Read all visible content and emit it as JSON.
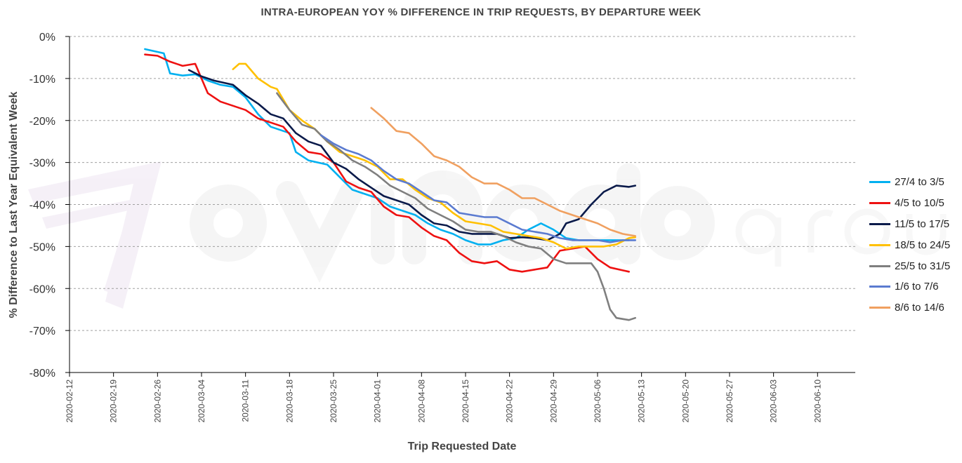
{
  "chart_data": {
    "type": "line",
    "title": "INTRA-EUROPEAN YOY % DIFFERENCE IN TRIP REQUESTS, BY DEPARTURE WEEK",
    "xlabel": "Trip Requested Date",
    "ylabel": "% Difference to Last Year Equivalent Week",
    "x_type": "date",
    "xlim": [
      "2020-02-12",
      "2020-06-16"
    ],
    "ylim": [
      -80,
      0
    ],
    "y_unit": "%",
    "x_ticks": [
      "2020-02-12",
      "2020-02-19",
      "2020-02-26",
      "2020-03-04",
      "2020-03-11",
      "2020-03-18",
      "2020-03-25",
      "2020-04-01",
      "2020-04-08",
      "2020-04-15",
      "2020-04-22",
      "2020-04-29",
      "2020-05-06",
      "2020-05-13",
      "2020-05-20",
      "2020-05-27",
      "2020-06-03",
      "2020-06-10"
    ],
    "y_ticks": [
      0,
      -10,
      -20,
      -30,
      -40,
      -50,
      -60,
      -70,
      -80
    ],
    "y_tick_labels": [
      "0%",
      "-10%",
      "-20%",
      "-30%",
      "-40%",
      "-50%",
      "-60%",
      "-70%",
      "-80%"
    ],
    "grid": "horizontal dashed",
    "legend_position": "right",
    "series": [
      {
        "name": "27/4 to 3/5",
        "color": "#00B0F0",
        "points": [
          [
            "2020-02-24",
            -3
          ],
          [
            "2020-02-27",
            -4
          ],
          [
            "2020-02-28",
            -8.8
          ],
          [
            "2020-03-01",
            -9.3
          ],
          [
            "2020-03-03",
            -9
          ],
          [
            "2020-03-05",
            -10.5
          ],
          [
            "2020-03-07",
            -11.5
          ],
          [
            "2020-03-09",
            -12
          ],
          [
            "2020-03-11",
            -14.5
          ],
          [
            "2020-03-13",
            -18.5
          ],
          [
            "2020-03-15",
            -21.5
          ],
          [
            "2020-03-18",
            -23
          ],
          [
            "2020-03-19",
            -27.5
          ],
          [
            "2020-03-21",
            -29.5
          ],
          [
            "2020-03-24",
            -30.5
          ],
          [
            "2020-03-26",
            -33.5
          ],
          [
            "2020-03-28",
            -36.5
          ],
          [
            "2020-03-30",
            -37.5
          ],
          [
            "2020-04-01",
            -38.5
          ],
          [
            "2020-04-03",
            -40.5
          ],
          [
            "2020-04-05",
            -41.5
          ],
          [
            "2020-04-07",
            -42.5
          ],
          [
            "2020-04-09",
            -44.5
          ],
          [
            "2020-04-11",
            -46
          ],
          [
            "2020-04-13",
            -47
          ],
          [
            "2020-04-15",
            -48.5
          ],
          [
            "2020-04-17",
            -49.5
          ],
          [
            "2020-04-19",
            -49.5
          ],
          [
            "2020-04-21",
            -48.5
          ],
          [
            "2020-04-23",
            -48
          ],
          [
            "2020-04-25",
            -46
          ],
          [
            "2020-04-27",
            -44.5
          ],
          [
            "2020-04-29",
            -46
          ],
          [
            "2020-05-01",
            -48
          ],
          [
            "2020-05-03",
            -48.5
          ],
          [
            "2020-05-05",
            -48.5
          ],
          [
            "2020-05-07",
            -48.5
          ],
          [
            "2020-05-09",
            -48.5
          ],
          [
            "2020-05-11",
            -48.5
          ]
        ]
      },
      {
        "name": "4/5 to 10/5",
        "color": "#EE1111",
        "points": [
          [
            "2020-02-24",
            -4.3
          ],
          [
            "2020-02-26",
            -4.6
          ],
          [
            "2020-02-28",
            -6
          ],
          [
            "2020-03-01",
            -7
          ],
          [
            "2020-03-03",
            -6.5
          ],
          [
            "2020-03-05",
            -13.5
          ],
          [
            "2020-03-07",
            -15.5
          ],
          [
            "2020-03-09",
            -16.5
          ],
          [
            "2020-03-11",
            -17.5
          ],
          [
            "2020-03-13",
            -19.5
          ],
          [
            "2020-03-15",
            -20.5
          ],
          [
            "2020-03-17",
            -21.5
          ],
          [
            "2020-03-19",
            -25
          ],
          [
            "2020-03-21",
            -27.5
          ],
          [
            "2020-03-23",
            -28
          ],
          [
            "2020-03-25",
            -30
          ],
          [
            "2020-03-27",
            -34.5
          ],
          [
            "2020-03-29",
            -36
          ],
          [
            "2020-03-31",
            -37
          ],
          [
            "2020-04-02",
            -40.5
          ],
          [
            "2020-04-04",
            -42.5
          ],
          [
            "2020-04-06",
            -43
          ],
          [
            "2020-04-08",
            -45.5
          ],
          [
            "2020-04-10",
            -47.5
          ],
          [
            "2020-04-12",
            -48.5
          ],
          [
            "2020-04-14",
            -51.5
          ],
          [
            "2020-04-16",
            -53.5
          ],
          [
            "2020-04-18",
            -54
          ],
          [
            "2020-04-20",
            -53.5
          ],
          [
            "2020-04-22",
            -55.5
          ],
          [
            "2020-04-24",
            -56
          ],
          [
            "2020-04-26",
            -55.5
          ],
          [
            "2020-04-28",
            -55
          ],
          [
            "2020-04-30",
            -51
          ],
          [
            "2020-05-02",
            -50.5
          ],
          [
            "2020-05-04",
            -50
          ],
          [
            "2020-05-06",
            -53
          ],
          [
            "2020-05-08",
            -55
          ],
          [
            "2020-05-11",
            -56
          ]
        ]
      },
      {
        "name": "11/5 to 17/5",
        "color": "#0A1A4A",
        "points": [
          [
            "2020-03-02",
            -8
          ],
          [
            "2020-03-04",
            -9.5
          ],
          [
            "2020-03-06",
            -10.5
          ],
          [
            "2020-03-09",
            -11.5
          ],
          [
            "2020-03-11",
            -14
          ],
          [
            "2020-03-13",
            -16
          ],
          [
            "2020-03-15",
            -18.5
          ],
          [
            "2020-03-17",
            -19.5
          ],
          [
            "2020-03-19",
            -23
          ],
          [
            "2020-03-21",
            -25
          ],
          [
            "2020-03-23",
            -26
          ],
          [
            "2020-03-25",
            -30
          ],
          [
            "2020-03-27",
            -31.5
          ],
          [
            "2020-03-29",
            -34
          ],
          [
            "2020-03-31",
            -36
          ],
          [
            "2020-04-02",
            -38
          ],
          [
            "2020-04-04",
            -39
          ],
          [
            "2020-04-06",
            -40
          ],
          [
            "2020-04-08",
            -42.5
          ],
          [
            "2020-04-10",
            -44.5
          ],
          [
            "2020-04-12",
            -45
          ],
          [
            "2020-04-14",
            -46.5
          ],
          [
            "2020-04-16",
            -47
          ],
          [
            "2020-04-18",
            -47
          ],
          [
            "2020-04-20",
            -47
          ],
          [
            "2020-04-22",
            -48
          ],
          [
            "2020-04-24",
            -47.8
          ],
          [
            "2020-04-26",
            -48
          ],
          [
            "2020-04-28",
            -48.5
          ],
          [
            "2020-04-30",
            -47
          ],
          [
            "2020-05-01",
            -44.5
          ],
          [
            "2020-05-03",
            -43.5
          ],
          [
            "2020-05-05",
            -40
          ],
          [
            "2020-05-07",
            -37
          ],
          [
            "2020-05-09",
            -35.5
          ],
          [
            "2020-05-11",
            -35.8
          ],
          [
            "2020-05-12",
            -35.5
          ]
        ]
      },
      {
        "name": "18/5 to 24/5",
        "color": "#FFC000",
        "points": [
          [
            "2020-03-09",
            -7.8
          ],
          [
            "2020-03-10",
            -6.5
          ],
          [
            "2020-03-11",
            -6.5
          ],
          [
            "2020-03-13",
            -10
          ],
          [
            "2020-03-15",
            -12
          ],
          [
            "2020-03-16",
            -12.5
          ],
          [
            "2020-03-18",
            -17.5
          ],
          [
            "2020-03-20",
            -20
          ],
          [
            "2020-03-22",
            -22
          ],
          [
            "2020-03-24",
            -25
          ],
          [
            "2020-03-26",
            -27.5
          ],
          [
            "2020-03-28",
            -28.5
          ],
          [
            "2020-03-30",
            -29.5
          ],
          [
            "2020-04-01",
            -31
          ],
          [
            "2020-04-03",
            -34
          ],
          [
            "2020-04-05",
            -34
          ],
          [
            "2020-04-07",
            -36.5
          ],
          [
            "2020-04-09",
            -38.5
          ],
          [
            "2020-04-11",
            -39.5
          ],
          [
            "2020-04-13",
            -42
          ],
          [
            "2020-04-15",
            -44
          ],
          [
            "2020-04-17",
            -44.5
          ],
          [
            "2020-04-19",
            -45
          ],
          [
            "2020-04-21",
            -46.5
          ],
          [
            "2020-04-23",
            -47
          ],
          [
            "2020-04-25",
            -47.5
          ],
          [
            "2020-04-27",
            -48
          ],
          [
            "2020-04-29",
            -49
          ],
          [
            "2020-05-01",
            -50.5
          ],
          [
            "2020-05-03",
            -50
          ],
          [
            "2020-05-05",
            -50
          ],
          [
            "2020-05-07",
            -50
          ],
          [
            "2020-05-09",
            -49.5
          ],
          [
            "2020-05-11",
            -48
          ],
          [
            "2020-05-12",
            -47.8
          ]
        ]
      },
      {
        "name": "25/5 to 31/5",
        "color": "#7F7F7F",
        "points": [
          [
            "2020-03-16",
            -13.5
          ],
          [
            "2020-03-18",
            -17.5
          ],
          [
            "2020-03-20",
            -21
          ],
          [
            "2020-03-22",
            -22
          ],
          [
            "2020-03-24",
            -25
          ],
          [
            "2020-03-26",
            -27
          ],
          [
            "2020-03-28",
            -29.5
          ],
          [
            "2020-03-30",
            -31
          ],
          [
            "2020-04-01",
            -33
          ],
          [
            "2020-04-03",
            -35.5
          ],
          [
            "2020-04-05",
            -37
          ],
          [
            "2020-04-07",
            -38.5
          ],
          [
            "2020-04-09",
            -41
          ],
          [
            "2020-04-11",
            -42.5
          ],
          [
            "2020-04-13",
            -44
          ],
          [
            "2020-04-15",
            -46
          ],
          [
            "2020-04-17",
            -46.5
          ],
          [
            "2020-04-19",
            -46.5
          ],
          [
            "2020-04-21",
            -47.5
          ],
          [
            "2020-04-23",
            -49
          ],
          [
            "2020-04-25",
            -50
          ],
          [
            "2020-04-27",
            -50.5
          ],
          [
            "2020-04-29",
            -53
          ],
          [
            "2020-05-01",
            -54
          ],
          [
            "2020-05-03",
            -54
          ],
          [
            "2020-05-05",
            -54
          ],
          [
            "2020-05-06",
            -56
          ],
          [
            "2020-05-07",
            -60
          ],
          [
            "2020-05-08",
            -65
          ],
          [
            "2020-05-09",
            -67
          ],
          [
            "2020-05-11",
            -67.5
          ],
          [
            "2020-05-12",
            -67
          ]
        ]
      },
      {
        "name": "1/6 to 7/6",
        "color": "#5B7BD0",
        "points": [
          [
            "2020-03-23",
            -23.5
          ],
          [
            "2020-03-25",
            -25.5
          ],
          [
            "2020-03-27",
            -27
          ],
          [
            "2020-03-29",
            -28
          ],
          [
            "2020-03-31",
            -29.5
          ],
          [
            "2020-04-02",
            -32
          ],
          [
            "2020-04-04",
            -34
          ],
          [
            "2020-04-06",
            -35
          ],
          [
            "2020-04-08",
            -37
          ],
          [
            "2020-04-10",
            -39
          ],
          [
            "2020-04-12",
            -39.5
          ],
          [
            "2020-04-14",
            -42
          ],
          [
            "2020-04-16",
            -42.5
          ],
          [
            "2020-04-18",
            -43
          ],
          [
            "2020-04-20",
            -43
          ],
          [
            "2020-04-22",
            -44.5
          ],
          [
            "2020-04-24",
            -46
          ],
          [
            "2020-04-26",
            -46.5
          ],
          [
            "2020-04-28",
            -47
          ],
          [
            "2020-04-30",
            -48
          ],
          [
            "2020-05-02",
            -48.5
          ],
          [
            "2020-05-04",
            -48.5
          ],
          [
            "2020-05-06",
            -48.5
          ],
          [
            "2020-05-08",
            -49
          ],
          [
            "2020-05-10",
            -48.5
          ],
          [
            "2020-05-12",
            -48.5
          ]
        ]
      },
      {
        "name": "8/6 to 14/6",
        "color": "#F0A060",
        "points": [
          [
            "2020-03-31",
            -17
          ],
          [
            "2020-04-02",
            -19.5
          ],
          [
            "2020-04-04",
            -22.5
          ],
          [
            "2020-04-06",
            -23
          ],
          [
            "2020-04-08",
            -25.5
          ],
          [
            "2020-04-10",
            -28.5
          ],
          [
            "2020-04-12",
            -29.5
          ],
          [
            "2020-04-14",
            -31
          ],
          [
            "2020-04-16",
            -33.5
          ],
          [
            "2020-04-18",
            -35
          ],
          [
            "2020-04-20",
            -35
          ],
          [
            "2020-04-22",
            -36.5
          ],
          [
            "2020-04-24",
            -38.5
          ],
          [
            "2020-04-26",
            -38.5
          ],
          [
            "2020-04-28",
            -40
          ],
          [
            "2020-04-30",
            -41.5
          ],
          [
            "2020-05-02",
            -42.5
          ],
          [
            "2020-05-04",
            -43.5
          ],
          [
            "2020-05-06",
            -44.5
          ],
          [
            "2020-05-08",
            -46
          ],
          [
            "2020-05-10",
            -47
          ],
          [
            "2020-05-12",
            -47.5
          ]
        ]
      }
    ]
  }
}
